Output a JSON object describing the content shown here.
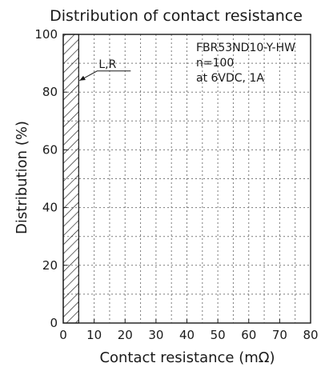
{
  "chart_data": {
    "type": "bar",
    "title": "Distribution of contact resistance",
    "xlabel": "Contact resistance (mΩ)",
    "ylabel": "Distribution (%)",
    "xlim": [
      0,
      80
    ],
    "ylim": [
      0,
      100
    ],
    "x_ticks": [
      0,
      10,
      20,
      30,
      40,
      50,
      60,
      70,
      80
    ],
    "y_ticks": [
      0,
      20,
      40,
      60,
      80,
      100
    ],
    "grid": true,
    "hatched_region": {
      "x_from": 0,
      "x_to": 5,
      "y_from": 0,
      "y_to": 100
    },
    "callout": {
      "label": "L,R",
      "points_to": {
        "x": 5,
        "y": 84
      }
    },
    "annotation_lines": [
      "FBR53ND10-Y-HW",
      "n=100",
      "at 6VDC, 1A"
    ],
    "annotation_placement": "top-right"
  },
  "colors": {
    "ink": "#1a1a1a",
    "grid": "#7a7a7a",
    "background": "#ffffff"
  }
}
